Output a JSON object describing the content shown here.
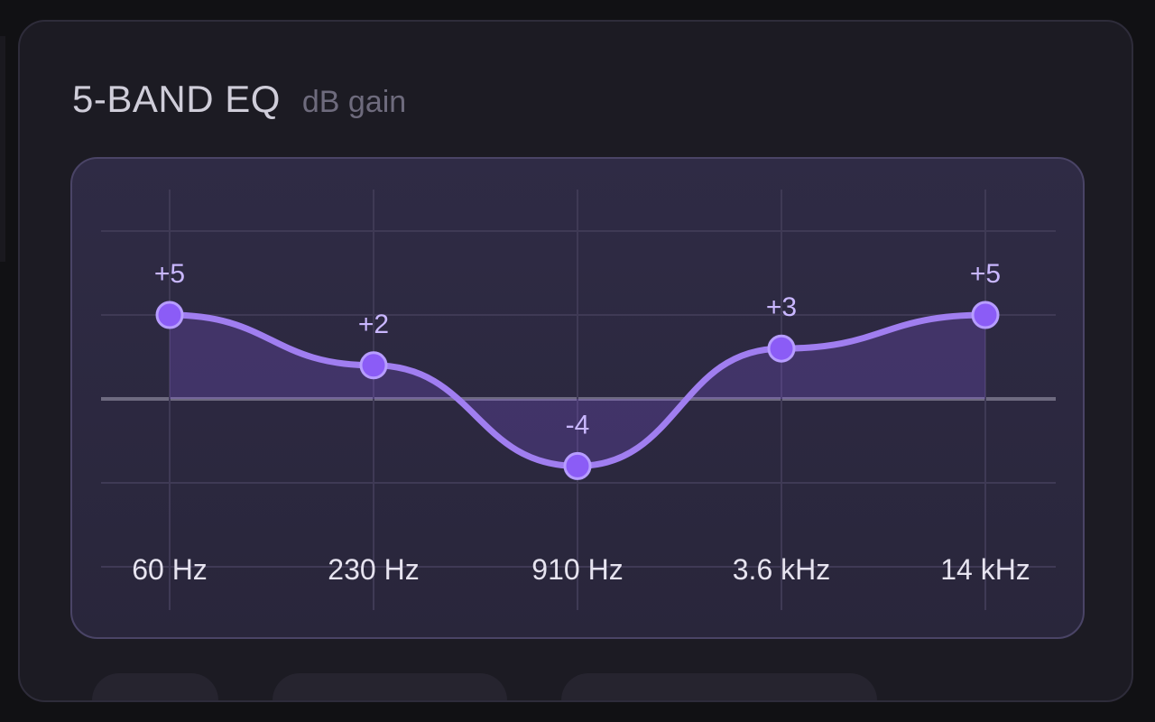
{
  "panel": {
    "title": "5-BAND EQ",
    "subtitle": "dB gain"
  },
  "colors": {
    "accent": "#8b5cf6",
    "curve": "#a07ef0",
    "label": "#e6e3ef",
    "gain_label": "#c9b7ff"
  },
  "chart_data": {
    "type": "line",
    "categories": [
      "60 Hz",
      "230 Hz",
      "910 Hz",
      "3.6 kHz",
      "14 kHz"
    ],
    "series": [
      {
        "values": [
          5,
          2,
          -4,
          3,
          5
        ],
        "labels": [
          "+5",
          "+2",
          "-4",
          "+3",
          "+5"
        ]
      }
    ],
    "ylim": [
      -10,
      10
    ],
    "grid": true,
    "fill_to_zero": true,
    "smooth": true
  }
}
